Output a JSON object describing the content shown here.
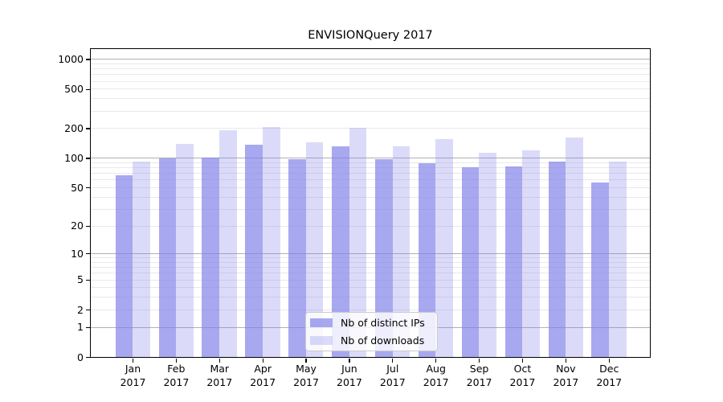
{
  "chart_data": {
    "type": "bar",
    "title": "ENVISIONQuery 2017",
    "categories": [
      {
        "month": "Jan",
        "year": "2017"
      },
      {
        "month": "Feb",
        "year": "2017"
      },
      {
        "month": "Mar",
        "year": "2017"
      },
      {
        "month": "Apr",
        "year": "2017"
      },
      {
        "month": "May",
        "year": "2017"
      },
      {
        "month": "Jun",
        "year": "2017"
      },
      {
        "month": "Jul",
        "year": "2017"
      },
      {
        "month": "Aug",
        "year": "2017"
      },
      {
        "month": "Sep",
        "year": "2017"
      },
      {
        "month": "Oct",
        "year": "2017"
      },
      {
        "month": "Nov",
        "year": "2017"
      },
      {
        "month": "Dec",
        "year": "2017"
      }
    ],
    "series": [
      {
        "name": "Nb of distinct IPs",
        "slug": "distinct-ips",
        "color": "rgba(127,127,233,0.68)",
        "values": [
          67,
          99,
          102,
          136,
          98,
          131,
          97,
          89,
          81,
          83,
          92,
          57
        ]
      },
      {
        "name": "Nb of downloads",
        "slug": "downloads",
        "color": "rgba(127,127,233,0.28)",
        "values": [
          92,
          141,
          192,
          208,
          146,
          204,
          131,
          156,
          113,
          120,
          163,
          92
        ]
      }
    ],
    "xlabel": "",
    "ylabel": "",
    "y_axis": {
      "scale": "log1p",
      "ticks": [
        0,
        1,
        2,
        5,
        10,
        20,
        50,
        100,
        200,
        500,
        1000
      ],
      "major_gridlines": [
        1,
        10,
        100,
        1000
      ],
      "minor_gridline_bases": [
        2,
        3,
        4,
        5,
        6,
        7,
        8,
        9
      ],
      "minor_gridline_decades": [
        1,
        10,
        100
      ],
      "ylim": [
        0,
        1276
      ]
    },
    "legend": {
      "position": "lower center",
      "entries": [
        "Nb of distinct IPs",
        "Nb of downloads"
      ]
    },
    "grid": true,
    "colors": {
      "background": "#ffffff",
      "major_grid": "#b0b0b0",
      "minor_grid": "#e9e9e9",
      "spine": "#000000",
      "text": "#000000",
      "legend_bg": "rgba(255,255,255,0.8)",
      "legend_border": "#cbcbcb"
    }
  }
}
